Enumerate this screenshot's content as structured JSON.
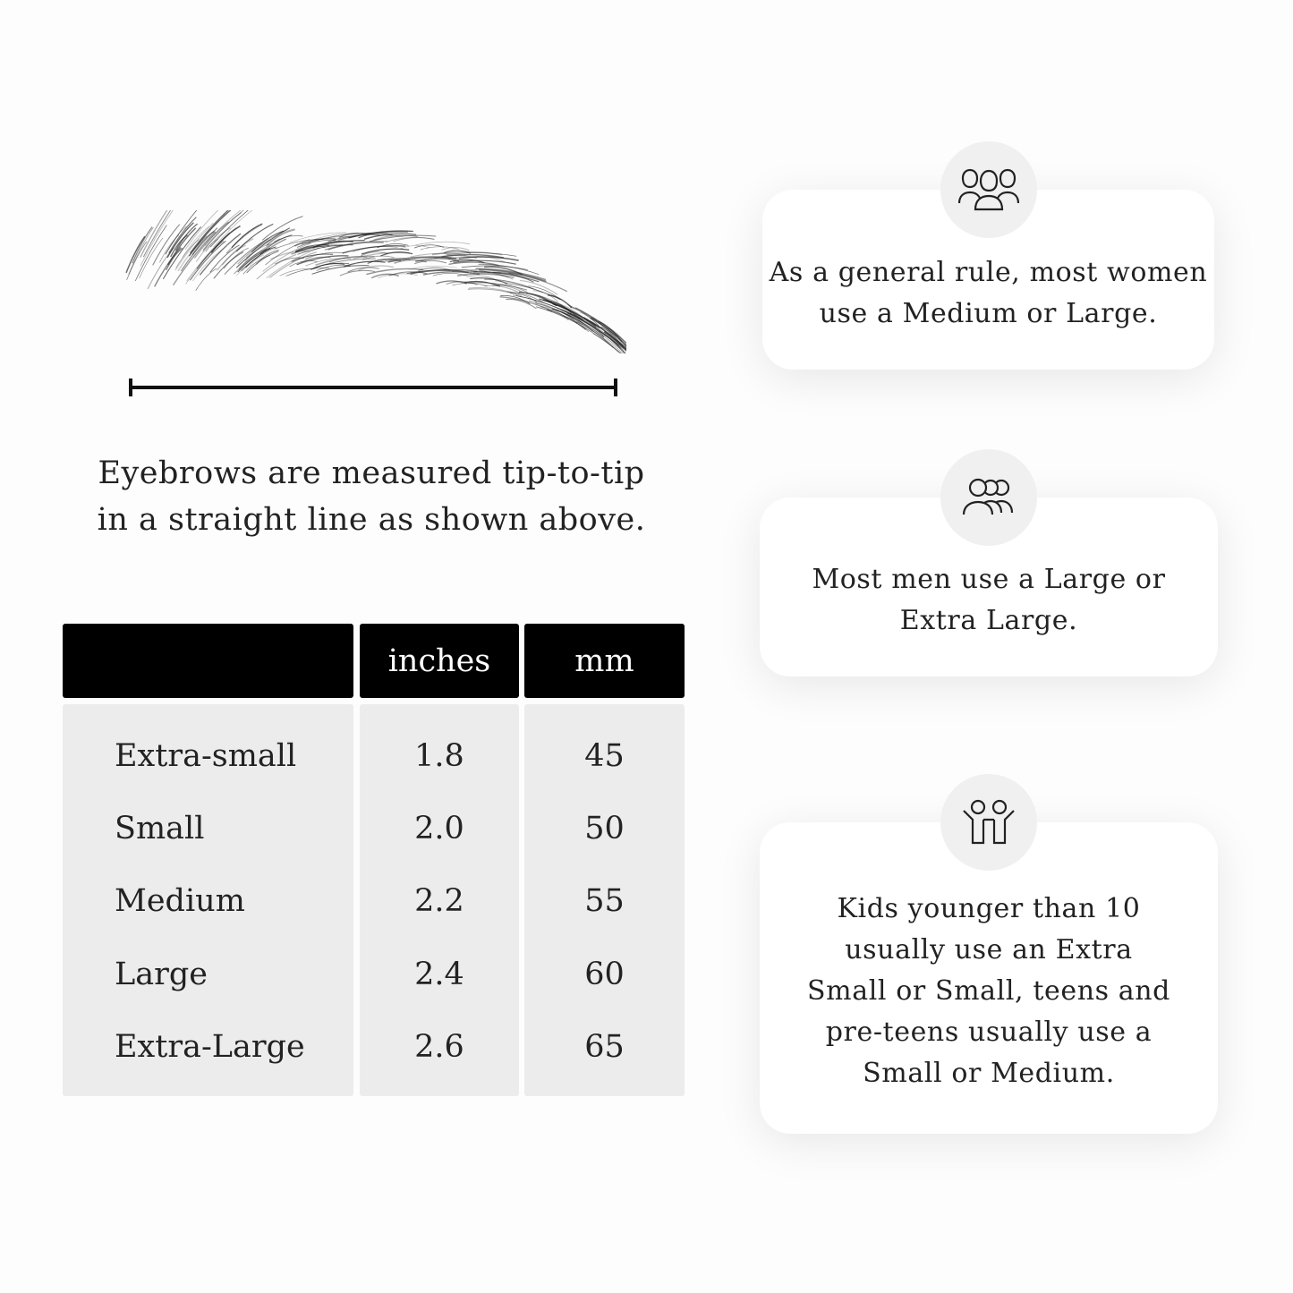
{
  "measurement": {
    "caption_line1": "Eyebrows are measured tip-to-tip",
    "caption_line2": "in a straight line as shown above."
  },
  "table": {
    "headers": [
      "",
      "inches",
      "mm"
    ],
    "rows": [
      {
        "size": "Extra-small",
        "inches": "1.8",
        "mm": "45"
      },
      {
        "size": "Small",
        "inches": "2.0",
        "mm": "50"
      },
      {
        "size": "Medium",
        "inches": "2.2",
        "mm": "55"
      },
      {
        "size": "Large",
        "inches": "2.4",
        "mm": "60"
      },
      {
        "size": "Extra-Large",
        "inches": "2.6",
        "mm": "65"
      }
    ]
  },
  "cards": [
    {
      "icon": "women-group-icon",
      "lines": [
        "As a general rule, most women",
        "use a Medium or Large."
      ]
    },
    {
      "icon": "men-group-icon",
      "lines": [
        "Most men use a Large or",
        "Extra Large."
      ]
    },
    {
      "icon": "kids-icon",
      "lines": [
        "Kids younger than 10",
        "usually use an Extra",
        "Small or Small, teens and",
        "pre-teens usually use a",
        "Small or Medium."
      ]
    }
  ],
  "colors": {
    "header_bg": "#000000",
    "cell_bg": "#ececec",
    "circle_bg": "#f0f0f0"
  }
}
